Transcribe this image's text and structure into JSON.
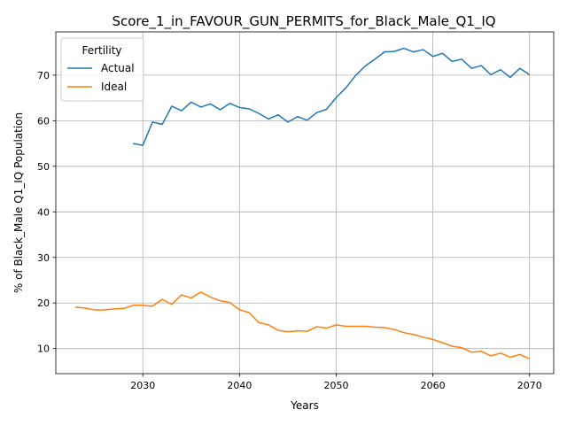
{
  "chart_data": {
    "type": "line",
    "title": "Score_1_in_FAVOUR_GUN_PERMITS_for_Black_Male_Q1_IQ",
    "xlabel": "Years",
    "ylabel": "% of Black_Male Q1_IQ Population",
    "xlim": [
      2021,
      2072.5
    ],
    "ylim": [
      4.5,
      79.5
    ],
    "xticks": [
      2030,
      2040,
      2050,
      2060,
      2070
    ],
    "yticks": [
      10,
      20,
      30,
      40,
      50,
      60,
      70
    ],
    "grid": true,
    "legend": {
      "title": "Fertility",
      "placement": "top-left"
    },
    "series": [
      {
        "name": "Actual",
        "color": "#1f77b4",
        "x": [
          2029,
          2030,
          2031,
          2032,
          2033,
          2034,
          2035,
          2036,
          2037,
          2038,
          2039,
          2040,
          2041,
          2042,
          2043,
          2044,
          2045,
          2046,
          2047,
          2048,
          2049,
          2050,
          2051,
          2052,
          2053,
          2054,
          2055,
          2056,
          2057,
          2058,
          2059,
          2060,
          2061,
          2062,
          2063,
          2064,
          2065,
          2066,
          2067,
          2068,
          2069,
          2070
        ],
        "y": [
          55.0,
          54.6,
          59.7,
          59.2,
          63.2,
          62.2,
          64.1,
          63.0,
          63.7,
          62.4,
          63.8,
          62.9,
          62.6,
          61.6,
          60.4,
          61.3,
          59.7,
          60.9,
          60.1,
          61.8,
          62.5,
          65.1,
          67.2,
          69.9,
          72.0,
          73.5,
          75.1,
          75.2,
          75.9,
          75.1,
          75.6,
          74.1,
          74.8,
          73.0,
          73.5,
          71.5,
          72.1,
          70.1,
          71.2,
          69.5,
          71.5,
          70.1
        ]
      },
      {
        "name": "Ideal",
        "color": "#ff7f0e",
        "x": [
          2023,
          2024,
          2025,
          2026,
          2027,
          2028,
          2029,
          2030,
          2031,
          2032,
          2033,
          2034,
          2035,
          2036,
          2037,
          2038,
          2039,
          2040,
          2041,
          2042,
          2043,
          2044,
          2045,
          2046,
          2047,
          2048,
          2049,
          2050,
          2051,
          2052,
          2053,
          2054,
          2055,
          2056,
          2057,
          2058,
          2059,
          2060,
          2061,
          2062,
          2063,
          2064,
          2065,
          2066,
          2067,
          2068,
          2069,
          2070
        ],
        "y": [
          19.1,
          18.9,
          18.5,
          18.5,
          18.7,
          18.8,
          19.5,
          19.5,
          19.3,
          20.8,
          19.7,
          21.8,
          21.1,
          22.4,
          21.3,
          20.5,
          20.1,
          18.5,
          17.9,
          15.7,
          15.2,
          14.0,
          13.7,
          13.9,
          13.8,
          14.8,
          14.5,
          15.2,
          14.9,
          14.9,
          14.9,
          14.7,
          14.6,
          14.2,
          13.5,
          13.1,
          12.5,
          12.0,
          11.3,
          10.5,
          10.2,
          9.2,
          9.4,
          8.4,
          9.0,
          8.1,
          8.7,
          7.8
        ]
      }
    ]
  }
}
